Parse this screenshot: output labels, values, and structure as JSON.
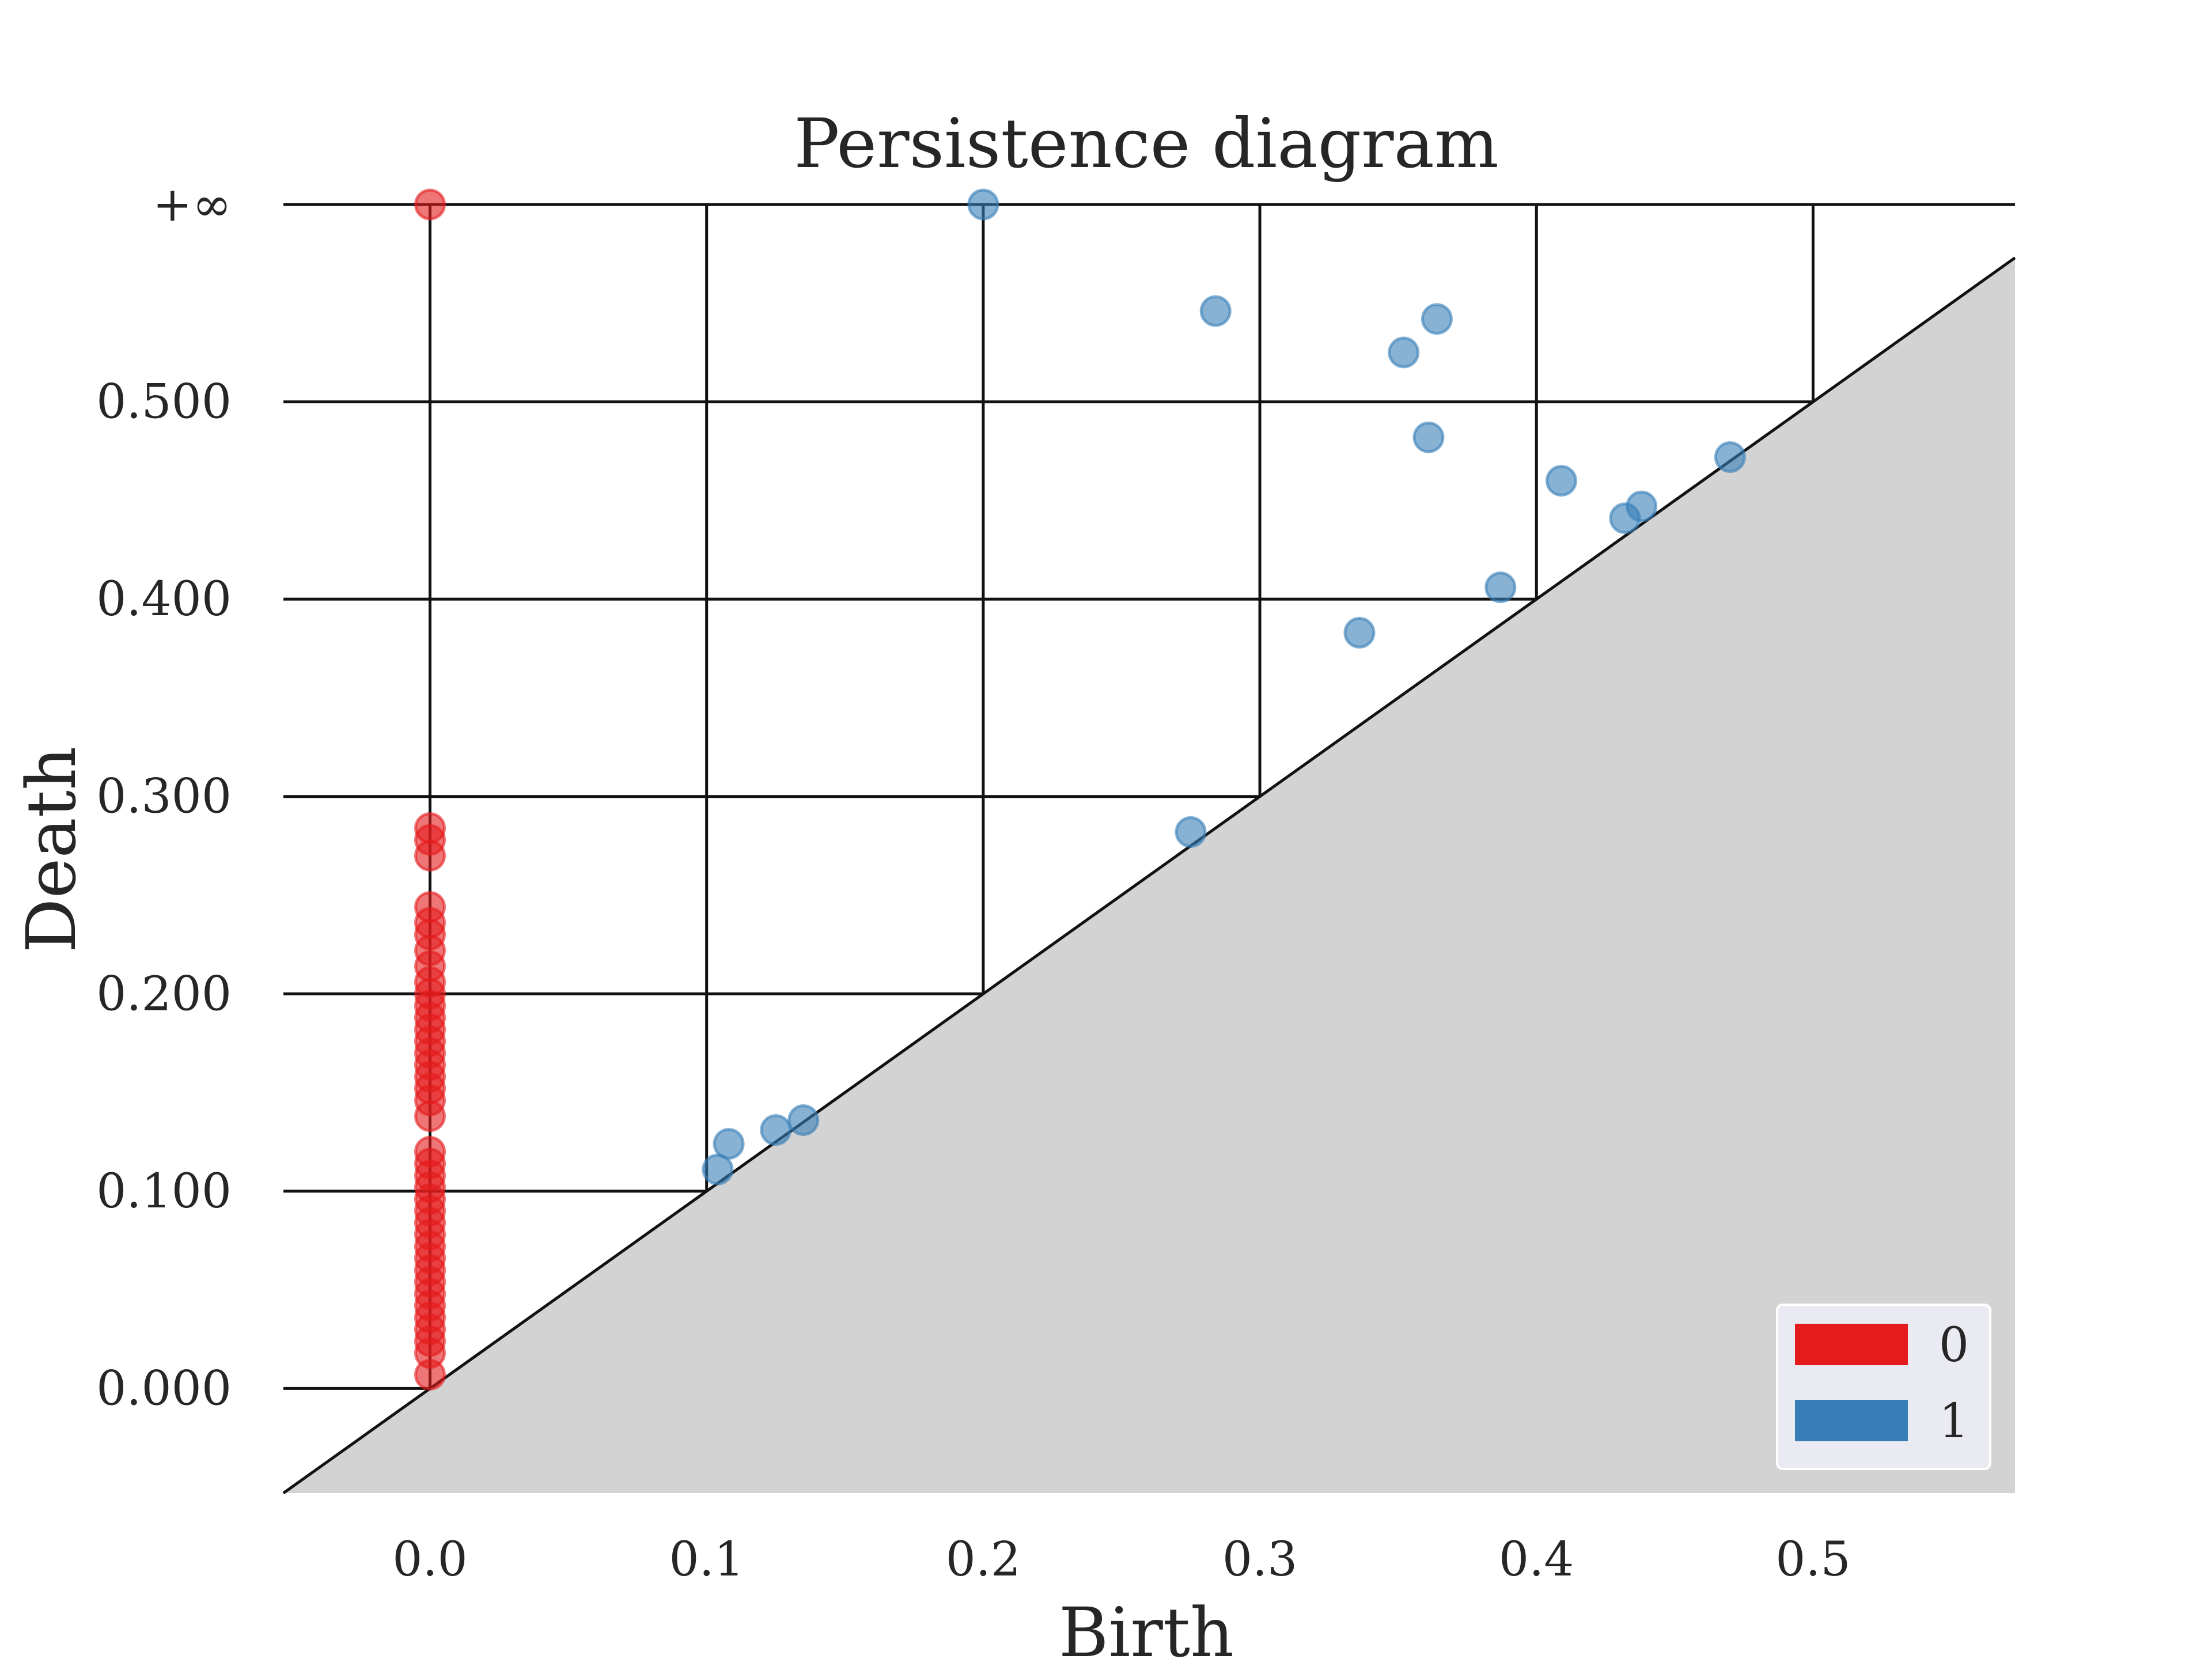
{
  "chart_data": {
    "type": "scatter",
    "title": "Persistence diagram",
    "xlabel": "Birth",
    "ylabel": "Death",
    "xlim": [
      -0.053,
      0.573
    ],
    "ylim": [
      -0.053,
      0.6
    ],
    "x_ticks": [
      {
        "value": 0.0,
        "label": "0.0"
      },
      {
        "value": 0.1,
        "label": "0.1"
      },
      {
        "value": 0.2,
        "label": "0.2"
      },
      {
        "value": 0.3,
        "label": "0.3"
      },
      {
        "value": 0.4,
        "label": "0.4"
      },
      {
        "value": 0.5,
        "label": "0.5"
      }
    ],
    "y_ticks": [
      {
        "value": 0.0,
        "label": "0.000"
      },
      {
        "value": 0.1,
        "label": "0.100"
      },
      {
        "value": 0.2,
        "label": "0.200"
      },
      {
        "value": 0.3,
        "label": "0.300"
      },
      {
        "value": 0.4,
        "label": "0.400"
      },
      {
        "value": 0.5,
        "label": "0.500"
      },
      {
        "value": 0.6,
        "label": "+∞"
      }
    ],
    "infinity_death_value": 0.6,
    "grid": true,
    "diagonal_shaded_below": true,
    "legend": {
      "placement": "lower-right"
    },
    "series": [
      {
        "name": "0",
        "color": "#e41a1c",
        "points": [
          [
            0,
            0.6
          ],
          [
            0,
            0.284
          ],
          [
            0,
            0.278
          ],
          [
            0,
            0.27
          ],
          [
            0,
            0.244
          ],
          [
            0,
            0.236
          ],
          [
            0,
            0.23
          ],
          [
            0,
            0.222
          ],
          [
            0,
            0.214
          ],
          [
            0,
            0.206
          ],
          [
            0,
            0.2
          ],
          [
            0,
            0.194
          ],
          [
            0,
            0.188
          ],
          [
            0,
            0.182
          ],
          [
            0,
            0.176
          ],
          [
            0,
            0.17
          ],
          [
            0,
            0.164
          ],
          [
            0,
            0.158
          ],
          [
            0,
            0.152
          ],
          [
            0,
            0.146
          ],
          [
            0,
            0.138
          ],
          [
            0,
            0.12
          ],
          [
            0,
            0.114
          ],
          [
            0,
            0.108
          ],
          [
            0,
            0.102
          ],
          [
            0,
            0.096
          ],
          [
            0,
            0.09
          ],
          [
            0,
            0.084
          ],
          [
            0,
            0.078
          ],
          [
            0,
            0.072
          ],
          [
            0,
            0.066
          ],
          [
            0,
            0.06
          ],
          [
            0,
            0.054
          ],
          [
            0,
            0.048
          ],
          [
            0,
            0.042
          ],
          [
            0,
            0.036
          ],
          [
            0,
            0.03
          ],
          [
            0,
            0.024
          ],
          [
            0,
            0.018
          ],
          [
            0,
            0.007
          ]
        ]
      },
      {
        "name": "1",
        "color": "#377eb8",
        "points": [
          [
            0.2,
            0.6
          ],
          [
            0.284,
            0.546
          ],
          [
            0.364,
            0.542
          ],
          [
            0.352,
            0.525
          ],
          [
            0.361,
            0.482
          ],
          [
            0.409,
            0.46
          ],
          [
            0.47,
            0.472
          ],
          [
            0.438,
            0.447
          ],
          [
            0.432,
            0.441
          ],
          [
            0.387,
            0.406
          ],
          [
            0.336,
            0.383
          ],
          [
            0.275,
            0.282
          ],
          [
            0.108,
            0.124
          ],
          [
            0.104,
            0.111
          ],
          [
            0.125,
            0.131
          ],
          [
            0.135,
            0.136
          ]
        ]
      }
    ]
  }
}
